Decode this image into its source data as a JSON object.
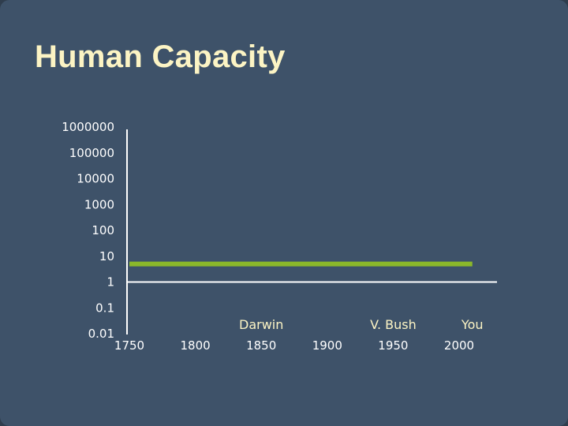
{
  "slide": {
    "title": "Human Capacity"
  },
  "chart_data": {
    "type": "line",
    "title": "",
    "xlabel": "",
    "ylabel": "",
    "x_ticks": [
      "1750",
      "1800",
      "1850",
      "1900",
      "1950",
      "2000"
    ],
    "y_ticks": [
      "1000000",
      "100000",
      "10000",
      "1000",
      "100",
      "10",
      "1",
      "0.1",
      "0.01"
    ],
    "y_scale": "log",
    "xlim": [
      1750,
      2000
    ],
    "ylim": [
      0.01,
      1000000
    ],
    "baseline_value": 1,
    "series": [
      {
        "x": [
          1750,
          2010
        ],
        "y": [
          5,
          5
        ],
        "color": "#8bb82a"
      }
    ],
    "annotations": [
      {
        "text": "Darwin",
        "x": 1850
      },
      {
        "text": "V. Bush",
        "x": 1950
      },
      {
        "text": "You",
        "x": 2010
      }
    ],
    "colors": {
      "line": "#8bb82a",
      "axis": "#ffffff",
      "annotation": "#fcf4c4",
      "tick_text": "#ffffff"
    }
  }
}
